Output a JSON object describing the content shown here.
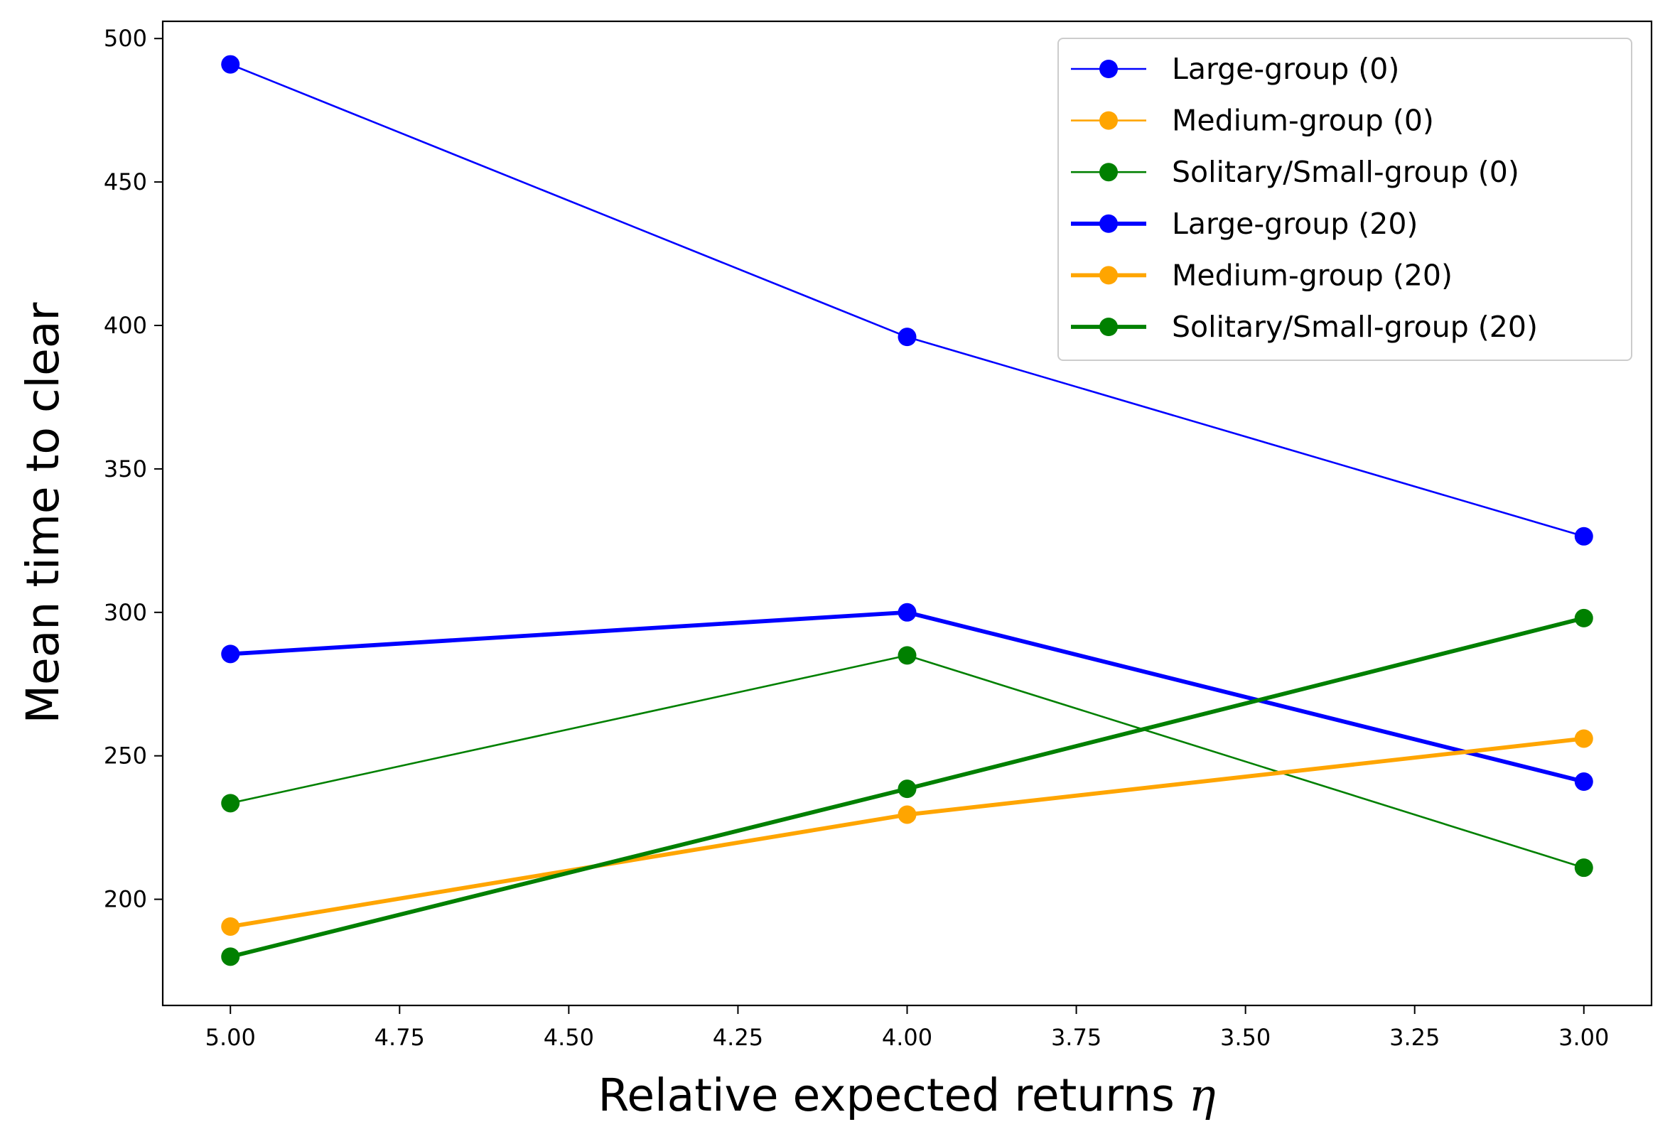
{
  "chart_data": {
    "type": "line",
    "xlabel": "Relative expected returns",
    "xlabel_symbol": "η",
    "ylabel": "Mean time to clear",
    "x": [
      5.0,
      4.0,
      3.0
    ],
    "xlim": [
      5.1,
      2.9
    ],
    "ylim": [
      163,
      506
    ],
    "x_inverted": true,
    "xticks": [
      5.0,
      4.75,
      4.5,
      4.25,
      4.0,
      3.75,
      3.5,
      3.25,
      3.0
    ],
    "xtick_labels": [
      "5.00",
      "4.75",
      "4.50",
      "4.25",
      "4.00",
      "3.75",
      "3.50",
      "3.25",
      "3.00"
    ],
    "yticks": [
      200,
      250,
      300,
      350,
      400,
      450,
      500
    ],
    "ytick_labels": [
      "200",
      "250",
      "300",
      "350",
      "400",
      "450",
      "500"
    ],
    "grid": false,
    "legend_position": "upper-right",
    "series": [
      {
        "name": "Large-group (0)",
        "values": [
          491,
          396,
          326.5
        ],
        "color": "#0000ff",
        "style": "thin"
      },
      {
        "name": "Medium-group (0)",
        "values": [
          null,
          null,
          null
        ],
        "color": "#ffa500",
        "style": "thin"
      },
      {
        "name": "Solitary/Small-group (0)",
        "values": [
          233.5,
          285,
          211
        ],
        "color": "#008000",
        "style": "thin"
      },
      {
        "name": "Large-group (20)",
        "values": [
          285.5,
          300,
          241
        ],
        "color": "#0000ff",
        "style": "thick"
      },
      {
        "name": "Medium-group (20)",
        "values": [
          190.5,
          229.5,
          256
        ],
        "color": "#ffa500",
        "style": "thick"
      },
      {
        "name": "Solitary/Small-group (20)",
        "values": [
          180,
          238.5,
          298
        ],
        "color": "#008000",
        "style": "thick"
      }
    ]
  }
}
